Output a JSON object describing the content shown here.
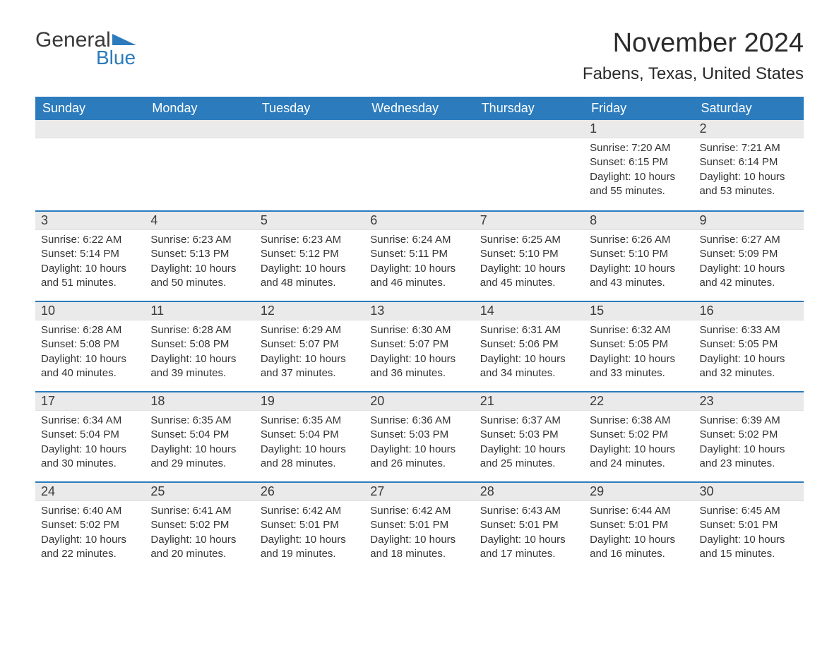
{
  "logo": {
    "general": "General",
    "blue": "Blue"
  },
  "title": "November 2024",
  "location": "Fabens, Texas, United States",
  "colors": {
    "header_bg": "#2b7bbd",
    "header_text": "#ffffff",
    "daynum_bg": "#eaeaea",
    "text": "#333333",
    "rule": "#2b7bbd"
  },
  "weekdays": [
    "Sunday",
    "Monday",
    "Tuesday",
    "Wednesday",
    "Thursday",
    "Friday",
    "Saturday"
  ],
  "weeks": [
    [
      null,
      null,
      null,
      null,
      null,
      {
        "n": "1",
        "sunrise": "7:20 AM",
        "sunset": "6:15 PM",
        "dlh": "10",
        "dlm": "55"
      },
      {
        "n": "2",
        "sunrise": "7:21 AM",
        "sunset": "6:14 PM",
        "dlh": "10",
        "dlm": "53"
      }
    ],
    [
      {
        "n": "3",
        "sunrise": "6:22 AM",
        "sunset": "5:14 PM",
        "dlh": "10",
        "dlm": "51"
      },
      {
        "n": "4",
        "sunrise": "6:23 AM",
        "sunset": "5:13 PM",
        "dlh": "10",
        "dlm": "50"
      },
      {
        "n": "5",
        "sunrise": "6:23 AM",
        "sunset": "5:12 PM",
        "dlh": "10",
        "dlm": "48"
      },
      {
        "n": "6",
        "sunrise": "6:24 AM",
        "sunset": "5:11 PM",
        "dlh": "10",
        "dlm": "46"
      },
      {
        "n": "7",
        "sunrise": "6:25 AM",
        "sunset": "5:10 PM",
        "dlh": "10",
        "dlm": "45"
      },
      {
        "n": "8",
        "sunrise": "6:26 AM",
        "sunset": "5:10 PM",
        "dlh": "10",
        "dlm": "43"
      },
      {
        "n": "9",
        "sunrise": "6:27 AM",
        "sunset": "5:09 PM",
        "dlh": "10",
        "dlm": "42"
      }
    ],
    [
      {
        "n": "10",
        "sunrise": "6:28 AM",
        "sunset": "5:08 PM",
        "dlh": "10",
        "dlm": "40"
      },
      {
        "n": "11",
        "sunrise": "6:28 AM",
        "sunset": "5:08 PM",
        "dlh": "10",
        "dlm": "39"
      },
      {
        "n": "12",
        "sunrise": "6:29 AM",
        "sunset": "5:07 PM",
        "dlh": "10",
        "dlm": "37"
      },
      {
        "n": "13",
        "sunrise": "6:30 AM",
        "sunset": "5:07 PM",
        "dlh": "10",
        "dlm": "36"
      },
      {
        "n": "14",
        "sunrise": "6:31 AM",
        "sunset": "5:06 PM",
        "dlh": "10",
        "dlm": "34"
      },
      {
        "n": "15",
        "sunrise": "6:32 AM",
        "sunset": "5:05 PM",
        "dlh": "10",
        "dlm": "33"
      },
      {
        "n": "16",
        "sunrise": "6:33 AM",
        "sunset": "5:05 PM",
        "dlh": "10",
        "dlm": "32"
      }
    ],
    [
      {
        "n": "17",
        "sunrise": "6:34 AM",
        "sunset": "5:04 PM",
        "dlh": "10",
        "dlm": "30"
      },
      {
        "n": "18",
        "sunrise": "6:35 AM",
        "sunset": "5:04 PM",
        "dlh": "10",
        "dlm": "29"
      },
      {
        "n": "19",
        "sunrise": "6:35 AM",
        "sunset": "5:04 PM",
        "dlh": "10",
        "dlm": "28"
      },
      {
        "n": "20",
        "sunrise": "6:36 AM",
        "sunset": "5:03 PM",
        "dlh": "10",
        "dlm": "26"
      },
      {
        "n": "21",
        "sunrise": "6:37 AM",
        "sunset": "5:03 PM",
        "dlh": "10",
        "dlm": "25"
      },
      {
        "n": "22",
        "sunrise": "6:38 AM",
        "sunset": "5:02 PM",
        "dlh": "10",
        "dlm": "24"
      },
      {
        "n": "23",
        "sunrise": "6:39 AM",
        "sunset": "5:02 PM",
        "dlh": "10",
        "dlm": "23"
      }
    ],
    [
      {
        "n": "24",
        "sunrise": "6:40 AM",
        "sunset": "5:02 PM",
        "dlh": "10",
        "dlm": "22"
      },
      {
        "n": "25",
        "sunrise": "6:41 AM",
        "sunset": "5:02 PM",
        "dlh": "10",
        "dlm": "20"
      },
      {
        "n": "26",
        "sunrise": "6:42 AM",
        "sunset": "5:01 PM",
        "dlh": "10",
        "dlm": "19"
      },
      {
        "n": "27",
        "sunrise": "6:42 AM",
        "sunset": "5:01 PM",
        "dlh": "10",
        "dlm": "18"
      },
      {
        "n": "28",
        "sunrise": "6:43 AM",
        "sunset": "5:01 PM",
        "dlh": "10",
        "dlm": "17"
      },
      {
        "n": "29",
        "sunrise": "6:44 AM",
        "sunset": "5:01 PM",
        "dlh": "10",
        "dlm": "16"
      },
      {
        "n": "30",
        "sunrise": "6:45 AM",
        "sunset": "5:01 PM",
        "dlh": "10",
        "dlm": "15"
      }
    ]
  ],
  "labels": {
    "sunrise": "Sunrise: ",
    "sunset": "Sunset: ",
    "daylight1": "Daylight: ",
    "hours": " hours",
    "and": "and ",
    "minutes": " minutes."
  }
}
